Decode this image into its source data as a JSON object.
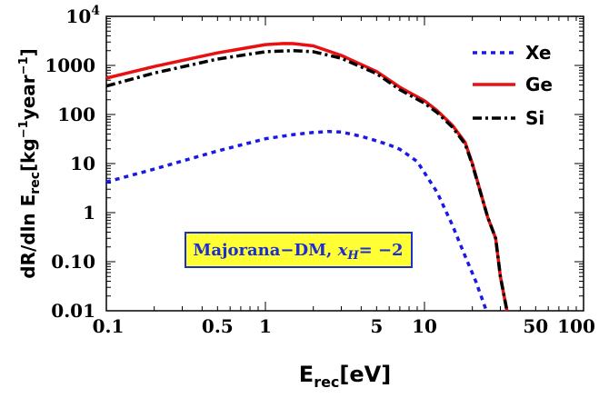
{
  "chart_data": {
    "type": "line",
    "title": "",
    "xlabel": {
      "main": "E",
      "sub": "rec",
      "unit": "[eV]"
    },
    "ylabel": {
      "prefix": "dR/dln E",
      "sub": "rec",
      "unit_open": "[kg",
      "exp1": "−1",
      "unit_mid": "year",
      "exp2": "−1",
      "unit_close": "]"
    },
    "xscale": "log",
    "yscale": "log",
    "xlim": [
      0.1,
      100
    ],
    "ylim": [
      0.01,
      10000
    ],
    "x_ticks": [
      {
        "value": 0.1,
        "label": "0.1"
      },
      {
        "value": 0.5,
        "label": "0.5"
      },
      {
        "value": 1,
        "label": "1"
      },
      {
        "value": 5,
        "label": "5"
      },
      {
        "value": 10,
        "label": "10"
      },
      {
        "value": 50,
        "label": "50"
      },
      {
        "value": 100,
        "label": "100"
      }
    ],
    "y_ticks": [
      {
        "value": 0.01,
        "label": "0.01"
      },
      {
        "value": 0.1,
        "label": "0.10"
      },
      {
        "value": 1,
        "label": "1"
      },
      {
        "value": 10,
        "label": "10"
      },
      {
        "value": 100,
        "label": "100"
      },
      {
        "value": 1000,
        "label": "1000"
      }
    ],
    "y_top_label": {
      "base": "10",
      "exp": "4"
    },
    "legend_position": "top-right",
    "series": [
      {
        "name": "Xe",
        "color": "#1a1ae6",
        "dash": "dotted",
        "x": [
          0.1,
          0.2,
          0.5,
          1.0,
          1.5,
          2.0,
          2.5,
          3.0,
          4.0,
          5.0,
          6.0,
          7.0,
          8.0,
          9.0,
          10.0,
          12.0,
          15.0,
          18.0,
          21.0,
          24.5
        ],
        "y": [
          4.2,
          7.7,
          18,
          32,
          39,
          43,
          45,
          44,
          36,
          29,
          24,
          19.5,
          14.5,
          11,
          6.5,
          2.6,
          0.55,
          0.13,
          0.04,
          0.01
        ]
      },
      {
        "name": "Ge",
        "color": "#e81010",
        "dash": "solid",
        "x": [
          0.1,
          0.2,
          0.5,
          1.0,
          1.3,
          1.5,
          2.0,
          3.0,
          5.0,
          7.0,
          10.0,
          12.0,
          15.0,
          18.0,
          20.0,
          25.0,
          28.0,
          30.0,
          33.0
        ],
        "y": [
          550,
          950,
          1800,
          2650,
          2800,
          2780,
          2500,
          1600,
          750,
          360,
          190,
          120,
          60,
          27,
          10,
          0.8,
          0.3,
          0.05,
          0.01
        ]
      },
      {
        "name": "Si",
        "color": "#000000",
        "dash": "dashdot",
        "x": [
          0.1,
          0.2,
          0.5,
          1.0,
          1.5,
          2.0,
          3.0,
          5.0,
          7.0,
          10.0,
          12.0,
          15.0,
          18.0,
          20.0,
          25.0,
          28.0,
          30.0,
          33.0
        ],
        "y": [
          380,
          700,
          1350,
          1900,
          2000,
          1900,
          1400,
          680,
          320,
          170,
          110,
          55,
          25,
          9.5,
          0.8,
          0.3,
          0.05,
          0.01
        ]
      }
    ],
    "annotation": {
      "text_main": "Majorana−DM, ",
      "var": "x",
      "var_sub": "H",
      "text_rest": "= −2",
      "bg": "#ffff33",
      "border": "#1b2fd0"
    }
  }
}
